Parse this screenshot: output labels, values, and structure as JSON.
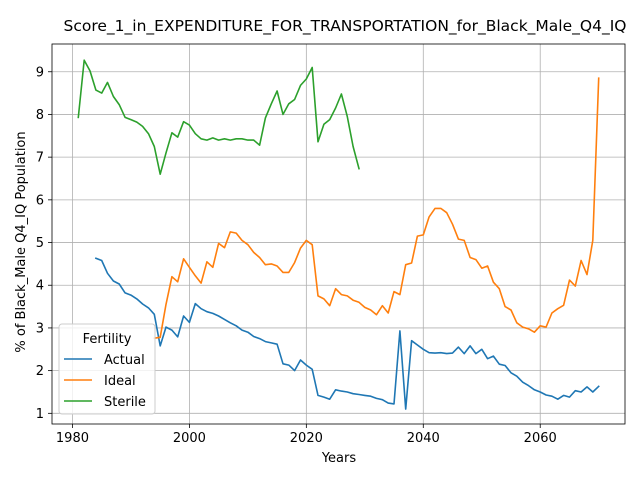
{
  "chart_data": {
    "type": "line",
    "title": "Score_1_in_EXPENDITURE_FOR_TRANSPORTATION_for_Black_Male_Q4_IQ",
    "xlabel": "Years",
    "ylabel": "% of Black_Male Q4_IQ Population",
    "xlim": [
      1976.5,
      2074.5
    ],
    "ylim": [
      0.75,
      9.65
    ],
    "xticks": [
      1980,
      2000,
      2020,
      2040,
      2060
    ],
    "yticks": [
      1,
      2,
      3,
      4,
      5,
      6,
      7,
      8,
      9
    ],
    "grid": true,
    "legend": {
      "title": "Fertility",
      "position": "lower-left"
    },
    "series": [
      {
        "name": "Actual",
        "color": "#1f77b4",
        "x": [
          1984,
          1985,
          1986,
          1987,
          1988,
          1989,
          1990,
          1991,
          1992,
          1993,
          1994,
          1995,
          1996,
          1997,
          1998,
          1999,
          2000,
          2001,
          2002,
          2003,
          2004,
          2005,
          2006,
          2007,
          2008,
          2009,
          2010,
          2011,
          2012,
          2013,
          2014,
          2015,
          2016,
          2017,
          2018,
          2019,
          2020,
          2021,
          2022,
          2023,
          2024,
          2025,
          2026,
          2027,
          2028,
          2029,
          2030,
          2031,
          2032,
          2033,
          2034,
          2035,
          2036,
          2037,
          2038,
          2039,
          2040,
          2041,
          2042,
          2043,
          2044,
          2045,
          2046,
          2047,
          2048,
          2049,
          2050,
          2051,
          2052,
          2053,
          2054,
          2055,
          2056,
          2057,
          2058,
          2059,
          2060,
          2061,
          2062,
          2063,
          2064,
          2065,
          2066,
          2067,
          2068,
          2069,
          2070
        ],
        "y": [
          4.63,
          4.58,
          4.28,
          4.1,
          4.03,
          3.82,
          3.77,
          3.68,
          3.56,
          3.47,
          3.32,
          2.58,
          3.02,
          2.95,
          2.79,
          3.28,
          3.13,
          3.57,
          3.45,
          3.38,
          3.34,
          3.28,
          3.2,
          3.12,
          3.05,
          2.95,
          2.9,
          2.8,
          2.75,
          2.68,
          2.65,
          2.62,
          2.16,
          2.13,
          2.0,
          2.25,
          2.13,
          2.03,
          1.42,
          1.38,
          1.33,
          1.55,
          1.52,
          1.5,
          1.46,
          1.44,
          1.42,
          1.4,
          1.35,
          1.32,
          1.24,
          1.22,
          2.93,
          1.1,
          2.7,
          2.6,
          2.5,
          2.42,
          2.41,
          2.42,
          2.4,
          2.41,
          2.55,
          2.4,
          2.58,
          2.4,
          2.5,
          2.28,
          2.34,
          2.15,
          2.12,
          1.95,
          1.87,
          1.73,
          1.65,
          1.55,
          1.5,
          1.43,
          1.4,
          1.33,
          1.42,
          1.38,
          1.53,
          1.5,
          1.62,
          1.5,
          1.63
        ]
      },
      {
        "name": "Ideal",
        "color": "#ff7f0e",
        "x": [
          1994,
          1995,
          1996,
          1997,
          1998,
          1999,
          2000,
          2001,
          2002,
          2003,
          2004,
          2005,
          2006,
          2007,
          2008,
          2009,
          2010,
          2011,
          2012,
          2013,
          2014,
          2015,
          2016,
          2017,
          2018,
          2019,
          2020,
          2021,
          2022,
          2023,
          2024,
          2025,
          2026,
          2027,
          2028,
          2029,
          2030,
          2031,
          2032,
          2033,
          2034,
          2035,
          2036,
          2037,
          2038,
          2039,
          2040,
          2041,
          2042,
          2043,
          2044,
          2045,
          2046,
          2047,
          2048,
          2049,
          2050,
          2051,
          2052,
          2053,
          2054,
          2055,
          2056,
          2057,
          2058,
          2059,
          2060,
          2061,
          2062,
          2063,
          2064,
          2065,
          2066,
          2067,
          2068,
          2069,
          2070
        ],
        "y": [
          2.76,
          2.78,
          3.55,
          4.2,
          4.08,
          4.62,
          4.42,
          4.22,
          4.05,
          4.55,
          4.42,
          4.98,
          4.88,
          5.25,
          5.22,
          5.05,
          4.95,
          4.77,
          4.65,
          4.48,
          4.5,
          4.45,
          4.3,
          4.3,
          4.53,
          4.87,
          5.05,
          4.95,
          3.75,
          3.68,
          3.52,
          3.92,
          3.78,
          3.75,
          3.65,
          3.6,
          3.48,
          3.42,
          3.31,
          3.52,
          3.35,
          3.85,
          3.78,
          4.48,
          4.52,
          5.15,
          5.18,
          5.6,
          5.8,
          5.8,
          5.7,
          5.43,
          5.08,
          5.05,
          4.65,
          4.6,
          4.4,
          4.45,
          4.07,
          3.92,
          3.5,
          3.42,
          3.12,
          3.02,
          2.98,
          2.9,
          3.05,
          3.02,
          3.35,
          3.45,
          3.53,
          4.12,
          3.98,
          4.58,
          4.25,
          5.05,
          8.85
        ]
      },
      {
        "name": "Sterile",
        "color": "#2ca02c",
        "x": [
          1981,
          1982,
          1983,
          1984,
          1985,
          1986,
          1987,
          1988,
          1989,
          1990,
          1991,
          1992,
          1993,
          1994,
          1995,
          1996,
          1997,
          1998,
          1999,
          2000,
          2001,
          2002,
          2003,
          2004,
          2005,
          2006,
          2007,
          2008,
          2009,
          2010,
          2011,
          2012,
          2013,
          2014,
          2015,
          2016,
          2017,
          2018,
          2019,
          2020,
          2021,
          2022,
          2023,
          2024,
          2025,
          2026,
          2027,
          2028,
          2029
        ],
        "y": [
          7.93,
          9.27,
          9.02,
          8.57,
          8.5,
          8.75,
          8.42,
          8.23,
          7.93,
          7.88,
          7.82,
          7.72,
          7.55,
          7.25,
          6.6,
          7.1,
          7.57,
          7.47,
          7.83,
          7.75,
          7.55,
          7.43,
          7.4,
          7.45,
          7.4,
          7.43,
          7.4,
          7.43,
          7.43,
          7.4,
          7.4,
          7.28,
          7.92,
          8.25,
          8.55,
          8.0,
          8.25,
          8.35,
          8.68,
          8.83,
          9.1,
          7.36,
          7.77,
          7.88,
          8.15,
          8.48,
          7.95,
          7.25,
          6.73
        ]
      }
    ]
  }
}
